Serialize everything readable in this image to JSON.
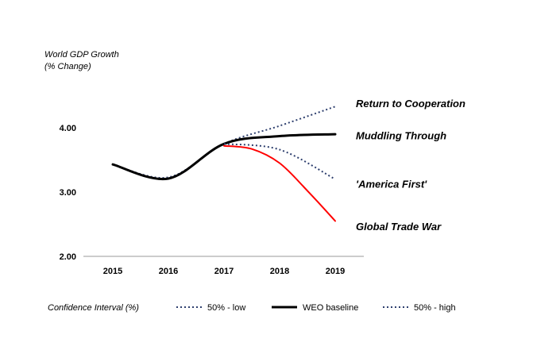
{
  "chart_data": {
    "type": "line",
    "title": "",
    "ylabel_line1": "World GDP  Growth",
    "ylabel_line2": "(% Change)",
    "xlabel": "",
    "ylim": [
      2.0,
      4.5
    ],
    "yticks": [
      2.0,
      3.0,
      4.0
    ],
    "ytick_labels": [
      "2.00",
      "3.00",
      "4.00"
    ],
    "x": [
      2015,
      2016,
      2017,
      2018,
      2019
    ],
    "xtick_labels": [
      "2015",
      "2016",
      "2017",
      "2018",
      "2019"
    ],
    "grid": false,
    "series": [
      {
        "name": "50% - high",
        "style": "dotted",
        "color": "#2e3f6e",
        "x": [
          2015,
          2016,
          2017,
          2018,
          2019
        ],
        "values": [
          3.43,
          3.23,
          3.75,
          4.03,
          4.33
        ]
      },
      {
        "name": "WEO baseline",
        "style": "solid",
        "color": "#000000",
        "x": [
          2015,
          2016,
          2017,
          2018,
          2019
        ],
        "values": [
          3.43,
          3.21,
          3.75,
          3.87,
          3.9
        ]
      },
      {
        "name": "50% - low",
        "style": "dotted",
        "color": "#2e3f6e",
        "x": [
          2017,
          2018,
          2019
        ],
        "values": [
          3.75,
          3.66,
          3.2
        ]
      },
      {
        "name": "Global Trade War",
        "style": "solid",
        "color": "#ff0000",
        "x": [
          2017,
          2017.5,
          2018,
          2018.5,
          2019
        ],
        "values": [
          3.72,
          3.67,
          3.45,
          3.02,
          2.55
        ]
      }
    ],
    "scenario_labels": [
      {
        "text": "Return to Cooperation",
        "value": 4.38
      },
      {
        "text": "Muddling Through",
        "value": 3.88
      },
      {
        "text": "'America First'",
        "value": 3.13
      },
      {
        "text": "Global Trade War",
        "value": 2.47
      }
    ],
    "legend": {
      "title": "Confidence Interval (%)",
      "placement": "bottom",
      "items": [
        {
          "label": "50% - low",
          "style": "dotted",
          "color": "#2e3f6e"
        },
        {
          "label": "WEO baseline",
          "style": "solid",
          "color": "#000000"
        },
        {
          "label": "50% - high",
          "style": "dotted",
          "color": "#2e3f6e"
        }
      ]
    }
  }
}
